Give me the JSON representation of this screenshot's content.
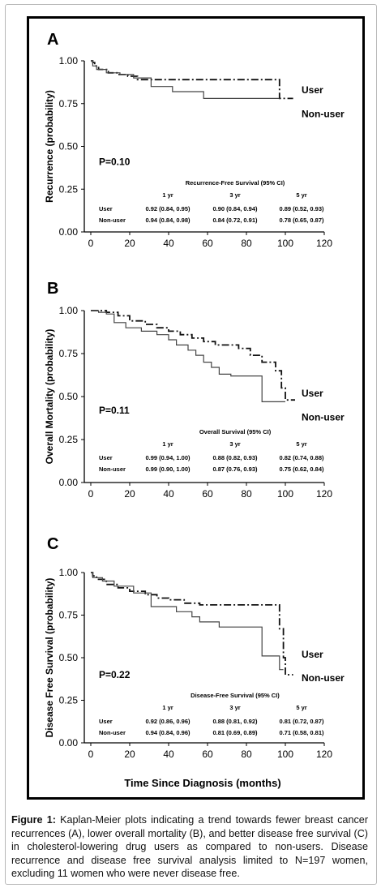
{
  "caption": {
    "label": "Figure 1:",
    "text": "Kaplan-Meier plots indicating a trend towards fewer breast cancer recurrences (A), lower overall mortality (B), and better disease free survival (C) in cholesterol-lowering drug users as compared to non-users. Disease recurrence and disease free survival analysis limited to N=197 women, excluding 11 women who were never disease free."
  },
  "shared_xlabel": "Time Since Diagnosis (months)",
  "chart_data": [
    {
      "type": "line",
      "panel": "A",
      "ylabel": "Recurrence (probability)",
      "xlim": [
        0,
        120
      ],
      "ylim": [
        0,
        1
      ],
      "xticks": [
        "0",
        "20",
        "40",
        "60",
        "80",
        "100",
        "120"
      ],
      "yticks": [
        "0.00",
        "0.25",
        "0.50",
        "0.75",
        "1.00"
      ],
      "pvalue": "P=0.10",
      "series": [
        {
          "name": "User",
          "style": "dashdot",
          "x": [
            0,
            1,
            1,
            2,
            2,
            4,
            4,
            9,
            9,
            14,
            14,
            19,
            19,
            24,
            24,
            97,
            97,
            104
          ],
          "y": [
            1,
            1,
            0.99,
            0.99,
            0.97,
            0.97,
            0.95,
            0.95,
            0.93,
            0.93,
            0.92,
            0.92,
            0.91,
            0.91,
            0.89,
            0.89,
            0.78,
            0.78
          ]
        },
        {
          "name": "Non-user",
          "style": "solid",
          "x": [
            0,
            1,
            1,
            3,
            3,
            8,
            8,
            15,
            15,
            22,
            22,
            31,
            31,
            42,
            42,
            58,
            58,
            97
          ],
          "y": [
            1,
            1,
            0.97,
            0.97,
            0.95,
            0.95,
            0.93,
            0.93,
            0.92,
            0.92,
            0.9,
            0.9,
            0.85,
            0.85,
            0.82,
            0.82,
            0.78,
            0.78
          ]
        }
      ],
      "table": {
        "title": "Recurrence-Free  Survival (95% CI)",
        "cols": [
          "1 yr",
          "3 yr",
          "5 yr"
        ],
        "rows": [
          {
            "label": "User",
            "values": [
              "0.92 (0.84, 0.95)",
              "0.90 (0.84, 0.94)",
              "0.89 (0.52, 0.93)"
            ]
          },
          {
            "label": "Non-user",
            "values": [
              "0.94 (0.84, 0.98)",
              "0.84 (0.72, 0.91)",
              "0.78 (0.65, 0.87)"
            ]
          }
        ]
      }
    },
    {
      "type": "line",
      "panel": "B",
      "ylabel": "Overall Mortality (probability)",
      "xlim": [
        0,
        120
      ],
      "ylim": [
        0,
        1
      ],
      "xticks": [
        "0",
        "20",
        "40",
        "60",
        "80",
        "100",
        "120"
      ],
      "yticks": [
        "0.00",
        "0.25",
        "0.50",
        "0.75",
        "1.00"
      ],
      "pvalue": "P=0.11",
      "series": [
        {
          "name": "User",
          "style": "dashdot",
          "x": [
            0,
            8,
            8,
            14,
            14,
            20,
            20,
            28,
            28,
            34,
            34,
            40,
            40,
            46,
            46,
            52,
            52,
            58,
            58,
            64,
            64,
            76,
            76,
            82,
            82,
            88,
            88,
            95,
            95,
            98,
            98,
            100,
            100,
            105
          ],
          "y": [
            1,
            1,
            0.99,
            0.99,
            0.97,
            0.97,
            0.94,
            0.94,
            0.92,
            0.92,
            0.9,
            0.9,
            0.88,
            0.88,
            0.86,
            0.86,
            0.84,
            0.84,
            0.82,
            0.82,
            0.8,
            0.8,
            0.78,
            0.78,
            0.74,
            0.74,
            0.7,
            0.7,
            0.65,
            0.65,
            0.55,
            0.55,
            0.48,
            0.48
          ]
        },
        {
          "name": "Non-user",
          "style": "solid",
          "x": [
            0,
            4,
            4,
            8,
            8,
            12,
            12,
            18,
            18,
            26,
            26,
            34,
            34,
            40,
            40,
            44,
            44,
            50,
            50,
            54,
            54,
            58,
            58,
            62,
            62,
            66,
            66,
            72,
            72,
            88,
            88,
            100
          ],
          "y": [
            1,
            1,
            0.99,
            0.99,
            0.98,
            0.98,
            0.93,
            0.93,
            0.9,
            0.9,
            0.88,
            0.88,
            0.86,
            0.86,
            0.83,
            0.83,
            0.8,
            0.8,
            0.77,
            0.77,
            0.74,
            0.74,
            0.7,
            0.7,
            0.67,
            0.67,
            0.63,
            0.63,
            0.62,
            0.62,
            0.47,
            0.47
          ]
        }
      ],
      "table": {
        "title": "Overall Survival (95% CI)",
        "cols": [
          "1 yr",
          "3 yr",
          "5 yr"
        ],
        "rows": [
          {
            "label": "User",
            "values": [
              "0.99 (0.94, 1.00)",
              "0.88 (0.82, 0.93)",
              "0.82 (0.74, 0.88)"
            ]
          },
          {
            "label": "Non-user",
            "values": [
              "0.99 (0.90, 1.00)",
              "0.87 (0.76, 0.93)",
              "0.75 (0.62, 0.84)"
            ]
          }
        ]
      }
    },
    {
      "type": "line",
      "panel": "C",
      "ylabel": "Disease Free Survival (probability)",
      "xlim": [
        0,
        120
      ],
      "ylim": [
        0,
        1
      ],
      "xticks": [
        "0",
        "20",
        "40",
        "60",
        "80",
        "100",
        "120"
      ],
      "yticks": [
        "0.00",
        "0.25",
        "0.50",
        "0.75",
        "1.00"
      ],
      "pvalue": "P=0.22",
      "series": [
        {
          "name": "User",
          "style": "dashdot",
          "x": [
            0,
            1,
            1,
            3,
            3,
            8,
            8,
            14,
            14,
            20,
            20,
            28,
            28,
            34,
            34,
            40,
            40,
            48,
            48,
            56,
            56,
            97,
            97,
            99,
            99,
            100,
            100,
            104
          ],
          "y": [
            1,
            1,
            0.98,
            0.98,
            0.96,
            0.96,
            0.93,
            0.93,
            0.91,
            0.91,
            0.89,
            0.89,
            0.87,
            0.87,
            0.85,
            0.85,
            0.84,
            0.84,
            0.82,
            0.82,
            0.81,
            0.81,
            0.67,
            0.67,
            0.5,
            0.5,
            0.4,
            0.4
          ]
        },
        {
          "name": "Non-user",
          "style": "solid",
          "x": [
            0,
            1,
            1,
            6,
            6,
            12,
            12,
            22,
            22,
            31,
            31,
            44,
            44,
            52,
            52,
            56,
            56,
            66,
            66,
            88,
            88,
            97,
            97,
            99
          ],
          "y": [
            1,
            1,
            0.97,
            0.97,
            0.95,
            0.95,
            0.92,
            0.92,
            0.88,
            0.88,
            0.8,
            0.8,
            0.77,
            0.77,
            0.74,
            0.74,
            0.71,
            0.71,
            0.68,
            0.68,
            0.51,
            0.51,
            0.43,
            0.43
          ]
        }
      ],
      "table": {
        "title": "Disease-Free  Survival (95% CI)",
        "cols": [
          "1 yr",
          "3 yr",
          "5 yr"
        ],
        "rows": [
          {
            "label": "User",
            "values": [
              "0.92 (0.86, 0.96)",
              "0.88 (0.81, 0.92)",
              "0.81 (0.72, 0.87)"
            ]
          },
          {
            "label": "Non-user",
            "values": [
              "0.94 (0.84, 0.96)",
              "0.81 (0.69, 0.89)",
              "0.71 (0.58, 0.81)"
            ]
          }
        ]
      }
    }
  ]
}
